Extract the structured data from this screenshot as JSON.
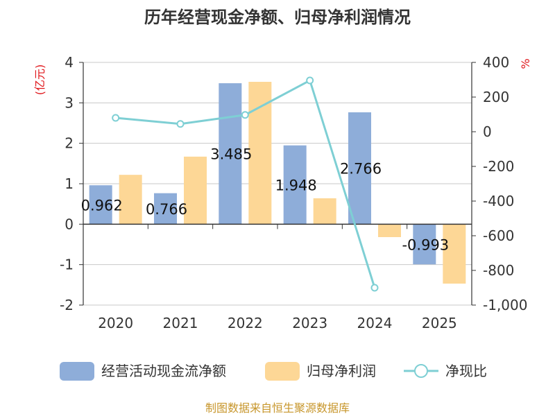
{
  "chart_data": {
    "type": "bar",
    "title": "历年经营现金净额、归母净利润情况",
    "categories": [
      "2020",
      "2021",
      "2022",
      "2023",
      "2024",
      "2025"
    ],
    "left_axis": {
      "unit": "(亿元)",
      "ylim": [
        -2,
        4
      ],
      "ticks": [
        4,
        3,
        2,
        1,
        0,
        -1,
        -2
      ]
    },
    "right_axis": {
      "unit": "%",
      "ylim": [
        -1000,
        400
      ],
      "ticks": [
        "400",
        "200",
        "0",
        "-200",
        "-400",
        "-600",
        "-800",
        "-1,000"
      ]
    },
    "series": [
      {
        "name": "经营活动现金流净额",
        "type": "bar",
        "axis": "left",
        "values": [
          0.962,
          0.766,
          3.485,
          1.948,
          2.766,
          -0.993
        ],
        "color": "#8eadd9",
        "labels": [
          "0.962",
          "0.766",
          "3.485",
          "1.948",
          "2.766",
          "-0.993"
        ]
      },
      {
        "name": "归母净利润",
        "type": "bar",
        "axis": "left",
        "values": [
          1.22,
          1.67,
          3.52,
          0.64,
          -0.32,
          -1.47
        ],
        "color": "#fdd796"
      },
      {
        "name": "净现比",
        "type": "line",
        "axis": "right",
        "values": [
          80,
          45,
          97,
          296,
          -900,
          null
        ],
        "color": "#7ecfd4"
      }
    ],
    "grid": true,
    "legend_position": "bottom",
    "source": "制图数据来自恒生聚源数据库"
  }
}
